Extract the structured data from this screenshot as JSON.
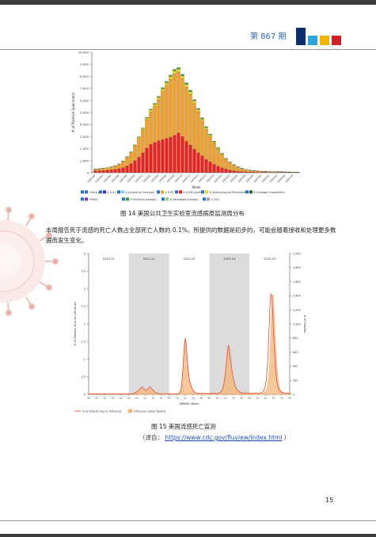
{
  "header": {
    "issue": "第 867 期"
  },
  "figure14": {
    "caption": "图 14   美国公共卫生实验室流感病原监测周分布",
    "chart_data": {
      "type": "bar",
      "stacked": true,
      "ylabel": "# of Positive Specimens",
      "xlabel": "Week",
      "ylim": [
        0,
        10000
      ],
      "y_ticks": [
        "0",
        "1,000",
        "2,000",
        "3,000",
        "4,000",
        "5,000",
        "6,000",
        "7,000",
        "8,000",
        "9,000",
        "10,000"
      ],
      "categories": [
        "202440",
        "202441",
        "202442",
        "202443",
        "202444",
        "202445",
        "202446",
        "202447",
        "202448",
        "202449",
        "202450",
        "202451",
        "202452",
        "202501",
        "202502",
        "202503",
        "202504",
        "202505",
        "202506",
        "202507",
        "202508",
        "202509",
        "202510",
        "202511",
        "202512",
        "202513",
        "202514",
        "202515",
        "202516",
        "202517",
        "202518",
        "202519",
        "202520",
        "202521",
        "202522",
        "202523",
        "202524",
        "202525",
        "202526",
        "202527",
        "202528",
        "202529",
        "202530",
        "202531",
        "202532",
        "202533",
        "202534",
        "202535",
        "202536",
        "202537",
        "202538",
        "202539"
      ],
      "x_tick_labels": [
        "202440",
        "202442",
        "202444",
        "202446",
        "202448",
        "202450",
        "202452",
        "202502",
        "202504",
        "202506",
        "202508",
        "202510",
        "202512",
        "202514",
        "202516",
        "202518",
        "202520",
        "202522",
        "202524",
        "202526",
        "202528",
        "202530",
        "202532",
        "202534",
        "202536",
        "202538"
      ],
      "series": [
        {
          "name": "A (H1N1)pdm09",
          "color": "#e8241c",
          "values": [
            150,
            160,
            180,
            200,
            230,
            270,
            330,
            420,
            560,
            750,
            1000,
            1300,
            1650,
            2050,
            2350,
            2500,
            2650,
            2750,
            2850,
            2950,
            3100,
            3300,
            3000,
            2600,
            2300,
            1950,
            1650,
            1400,
            1100,
            900,
            700,
            540,
            400,
            300,
            220,
            160,
            120,
            90,
            70,
            60,
            50,
            40,
            35,
            30,
            28,
            25,
            23,
            22,
            20,
            20,
            18,
            18
          ]
        },
        {
          "name": "A (H3)",
          "color": "#f0a028",
          "values": [
            150,
            160,
            170,
            200,
            240,
            290,
            380,
            500,
            700,
            900,
            1200,
            1550,
            1900,
            2350,
            2700,
            3000,
            3400,
            4000,
            4400,
            4800,
            5100,
            5050,
            4800,
            4500,
            4200,
            3800,
            3400,
            2900,
            2500,
            2100,
            1750,
            1400,
            1100,
            800,
            600,
            450,
            330,
            240,
            180,
            140,
            110,
            90,
            75,
            65,
            55,
            50,
            45,
            40,
            38,
            35,
            32,
            30
          ]
        },
        {
          "name": "A (Subtyping not Performed)",
          "color": "#e8d520",
          "values": [
            10,
            10,
            12,
            14,
            16,
            20,
            26,
            34,
            46,
            60,
            80,
            100,
            120,
            140,
            160,
            180,
            200,
            215,
            230,
            245,
            260,
            260,
            250,
            240,
            225,
            210,
            190,
            170,
            150,
            130,
            110,
            90,
            75,
            60,
            48,
            40,
            32,
            26,
            22,
            18,
            16,
            14,
            12,
            11,
            10,
            10,
            9,
            9,
            8,
            8,
            8,
            8
          ]
        },
        {
          "name": "B (Victoria Lineage)",
          "color": "#3b9b3b",
          "values": [
            5,
            5,
            6,
            7,
            8,
            10,
            12,
            15,
            20,
            25,
            30,
            38,
            46,
            55,
            65,
            75,
            85,
            95,
            105,
            115,
            125,
            130,
            130,
            125,
            118,
            110,
            100,
            90,
            80,
            70,
            60,
            50,
            42,
            35,
            28,
            22,
            18,
            15,
            12,
            10,
            9,
            8,
            7,
            6,
            6,
            5,
            5,
            5,
            4,
            4,
            4,
            4
          ]
        }
      ],
      "legend": [
        {
          "label": "Check All",
          "color": "#2a6fc9"
        },
        {
          "label": "A (H1)",
          "color": "#1f3fbf"
        },
        {
          "label": "A (Unable to Subtype)",
          "color": "#7ad0ea"
        },
        {
          "label": "A (H3)",
          "color": "#f0a028"
        },
        {
          "label": "A (H1N1)pdm09",
          "color": "#e8241c"
        },
        {
          "label": "A (Subtyping not Performed)",
          "color": "#e8d520"
        },
        {
          "label": "B (Lineage Unspecified)",
          "color": "#1e6b2a"
        },
        {
          "label": "H3N2v",
          "color": "#7a3fb0"
        },
        {
          "label": "B (Victoria Lineage)",
          "color": "#3b9b3b"
        },
        {
          "label": "B (Yamagata Lineage)",
          "color": "#8fcf6a"
        },
        {
          "label": "A (H5)",
          "color": "#a0a0a0"
        }
      ]
    }
  },
  "paragraph": "本周报告死于流感的死亡人数占全部死亡人数的 0.1%。所提供的数据是初步的，可能会随着接收和处理更多数据而发生变化。",
  "figure15": {
    "caption": "图 15   美国流感死亡监测",
    "chart_data": {
      "type": "area",
      "seasons": [
        "2020-21",
        "2021-22",
        "2022-23",
        "2023-24",
        "2024-25"
      ],
      "shaded_seasons": [
        "2021-22",
        "2023-24"
      ],
      "xlabel": "MMWR Week",
      "ylabel_left": "% of Deaths Due to Influenza",
      "ylabel_right": "# of Deaths",
      "ylim_left": [
        0,
        4
      ],
      "ylim_right": [
        0,
        2000
      ],
      "y_ticks_left": [
        "0",
        "0.5",
        "1",
        "1.5",
        "2",
        "2.5",
        "3",
        "3.5",
        "4"
      ],
      "y_ticks_right": [
        "0",
        "200",
        "400",
        "600",
        "800",
        "1,000",
        "1,200",
        "1,400",
        "1,600",
        "1,800",
        "2,000"
      ],
      "x_tick_labels": [
        "40",
        "50",
        "10",
        "20",
        "30",
        "40",
        "50",
        "10",
        "20",
        "30",
        "40",
        "50",
        "10",
        "20",
        "30",
        "40",
        "50",
        "10",
        "20",
        "30",
        "40",
        "50",
        "10",
        "20",
        "30",
        "40"
      ],
      "series": [
        {
          "name": "% of Deaths due to Influenza",
          "color": "#e8503a",
          "values": [
            0.02,
            0.02,
            0.02,
            0.02,
            0.02,
            0.02,
            0.02,
            0.02,
            0.02,
            0.02,
            0.02,
            0.02,
            0.02,
            0.02,
            0.02,
            0.02,
            0.02,
            0.02,
            0.02,
            0.02,
            0.02,
            0.02,
            0.02,
            0.02,
            0.02,
            0.02,
            0.02,
            0.02,
            0.02,
            0.02,
            0.02,
            0.02,
            0.02,
            0.02,
            0.02,
            0.02,
            0.02,
            0.02,
            0.02,
            0.02,
            0.02,
            0.02,
            0.02,
            0.02,
            0.02,
            0.02,
            0.02,
            0.02,
            0.02,
            0.02,
            0.02,
            0.02,
            0.03,
            0.04,
            0.05,
            0.06,
            0.08,
            0.1,
            0.12,
            0.14,
            0.17,
            0.2,
            0.22,
            0.2,
            0.16,
            0.14,
            0.12,
            0.12,
            0.14,
            0.17,
            0.2,
            0.22,
            0.2,
            0.17,
            0.14,
            0.11,
            0.09,
            0.07,
            0.05,
            0.04,
            0.03,
            0.03,
            0.02,
            0.02,
            0.02,
            0.02,
            0.02,
            0.02,
            0.02,
            0.02,
            0.02,
            0.02,
            0.02,
            0.02,
            0.02,
            0.02,
            0.02,
            0.02,
            0.02,
            0.02,
            0.02,
            0.02,
            0.02,
            0.02,
            0.02,
            0.04,
            0.08,
            0.16,
            0.35,
            0.65,
            1.05,
            1.45,
            1.6,
            1.45,
            1.1,
            0.8,
            0.55,
            0.4,
            0.3,
            0.22,
            0.16,
            0.12,
            0.09,
            0.07,
            0.05,
            0.04,
            0.03,
            0.03,
            0.03,
            0.03,
            0.03,
            0.03,
            0.03,
            0.03,
            0.03,
            0.03,
            0.03,
            0.03,
            0.03,
            0.03,
            0.03,
            0.03,
            0.03,
            0.03,
            0.03,
            0.03,
            0.03,
            0.03,
            0.03,
            0.03,
            0.03,
            0.04,
            0.05,
            0.07,
            0.1,
            0.15,
            0.23,
            0.35,
            0.52,
            0.75,
            1.0,
            1.25,
            1.4,
            1.3,
            1.1,
            0.9,
            0.7,
            0.55,
            0.42,
            0.32,
            0.24,
            0.18,
            0.14,
            0.11,
            0.08,
            0.07,
            0.06,
            0.05,
            0.04,
            0.04,
            0.04,
            0.04,
            0.04,
            0.04,
            0.04,
            0.04,
            0.04,
            0.04,
            0.04,
            0.04,
            0.04,
            0.04,
            0.04,
            0.04,
            0.04,
            0.04,
            0.04,
            0.04,
            0.04,
            0.04,
            0.05,
            0.06,
            0.08,
            0.12,
            0.18,
            0.28,
            0.45,
            0.75,
            1.2,
            1.8,
            2.45,
            2.85,
            2.8,
            2.45,
            1.9,
            1.4,
            0.95,
            0.62,
            0.4,
            0.26,
            0.17,
            0.12,
            0.09,
            0.07,
            0.06,
            0.05,
            0.05,
            0.04,
            0.04,
            0.04,
            0.04,
            0.04,
            0.04,
            0.04
          ]
        },
        {
          "name": "Influenza Coded Deaths",
          "color": "#f5b57a",
          "values": [
            5,
            5,
            5,
            5,
            5,
            5,
            5,
            5,
            5,
            5,
            5,
            5,
            5,
            5,
            5,
            5,
            5,
            5,
            5,
            5,
            5,
            5,
            5,
            5,
            5,
            5,
            5,
            5,
            5,
            5,
            5,
            5,
            5,
            5,
            5,
            5,
            5,
            5,
            5,
            5,
            5,
            5,
            5,
            5,
            5,
            5,
            5,
            5,
            5,
            5,
            5,
            5,
            8,
            10,
            14,
            20,
            28,
            36,
            45,
            55,
            68,
            80,
            88,
            82,
            66,
            58,
            52,
            52,
            58,
            68,
            80,
            88,
            82,
            70,
            58,
            46,
            36,
            28,
            20,
            15,
            12,
            10,
            8,
            7,
            6,
            6,
            6,
            6,
            6,
            6,
            6,
            6,
            6,
            6,
            6,
            6,
            6,
            6,
            6,
            6,
            6,
            6,
            6,
            6,
            6,
            12,
            28,
            60,
            140,
            270,
            460,
            660,
            760,
            690,
            520,
            370,
            250,
            180,
            130,
            95,
            70,
            52,
            40,
            30,
            23,
            18,
            14,
            12,
            12,
            12,
            12,
            12,
            12,
            12,
            12,
            12,
            12,
            12,
            12,
            12,
            12,
            12,
            12,
            12,
            12,
            12,
            12,
            12,
            12,
            12,
            12,
            16,
            20,
            28,
            40,
            60,
            95,
            145,
            220,
            330,
            460,
            580,
            650,
            610,
            500,
            400,
            300,
            230,
            175,
            130,
            100,
            75,
            58,
            45,
            35,
            28,
            24,
            20,
            17,
            16,
            15,
            15,
            15,
            15,
            15,
            15,
            15,
            15,
            15,
            15,
            15,
            15,
            15,
            15,
            15,
            15,
            15,
            15,
            15,
            15,
            15,
            15,
            18,
            22,
            30,
            45,
            70,
            110,
            180,
            310,
            520,
            820,
            1180,
            1420,
            1400,
            1200,
            900,
            640,
            430,
            280,
            180,
            115,
            75,
            52,
            38,
            30,
            25,
            22,
            20,
            18,
            16,
            15,
            15,
            15,
            15,
            15
          ]
        }
      ],
      "legend": [
        {
          "label": "% of Deaths due to Influenza",
          "color": "#e8503a"
        },
        {
          "label": "Influenza Coded Deaths",
          "color": "#f5b57a"
        }
      ]
    }
  },
  "source_note": {
    "prefix": "（译自：",
    "url": "https://www.cdc.gov/fluview/index.html",
    "suffix": "）"
  },
  "page_number": "15"
}
